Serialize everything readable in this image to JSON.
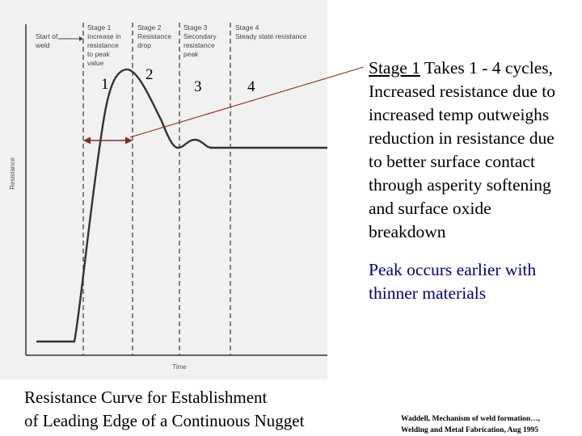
{
  "figure": {
    "stage_labels": {
      "start_of_weld": [
        "Start of",
        "weld"
      ],
      "stage1": [
        "Stage 1",
        "Increase in",
        "resistance",
        "to peak",
        "value"
      ],
      "stage2": [
        "Stage 2",
        "Resistance",
        "drop"
      ],
      "stage3": [
        "Stage 3",
        "Secondary",
        "resistance",
        "peak"
      ],
      "stage4": [
        "Stage 4",
        "Steady state resistance"
      ]
    },
    "y_axis_label": "Resistance",
    "x_axis_label": "Time",
    "stage_numbers": [
      "1",
      "2",
      "3",
      "4"
    ]
  },
  "notes": {
    "stage1_underlined": "Stage 1",
    "stage1_text": " Takes 1 - 4 cycles, Increased resistance due to increased temp outweighs reduction in resistance due to better surface contact through asperity softening and surface oxide breakdown",
    "peak_note": "Peak occurs earlier with thinner materials"
  },
  "caption": [
    "Resistance Curve for Establishment",
    "of Leading Edge of a Continuous Nugget"
  ],
  "citation": [
    "Waddell, Mechanism of weld formation…,",
    "Welding and Metal Fabrication, Aug 1995"
  ],
  "colors": {
    "scan_background": "#f1f1f1",
    "curve": "#333333",
    "arrow": "#8b2a1a",
    "peak_note": "#000080"
  }
}
